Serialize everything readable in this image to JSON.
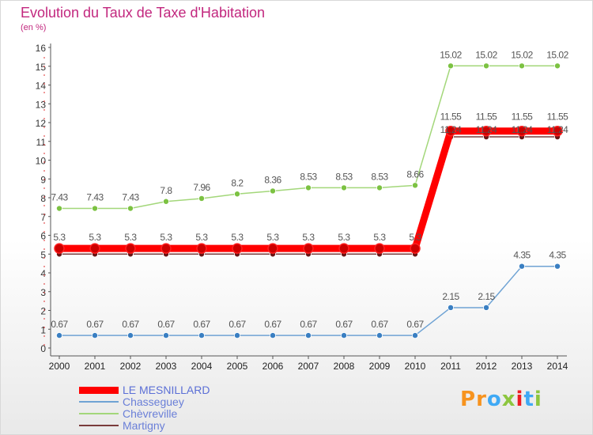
{
  "header": {
    "title": "Evolution du Taux de Taxe d'Habitation",
    "unit": "(en %)"
  },
  "logo": {
    "text": "Proxiti",
    "colors": [
      "#f7931e",
      "#f7931e",
      "#3fa9f5",
      "#8dc63f",
      "#ed1c24",
      "#3fa9f5",
      "#8dc63f"
    ]
  },
  "chart_data": {
    "type": "line",
    "x": [
      "2000",
      "2001",
      "2002",
      "2003",
      "2004",
      "2005",
      "2006",
      "2007",
      "2008",
      "2009",
      "2010",
      "2011",
      "2012",
      "2013",
      "2014"
    ],
    "ylim": [
      0,
      16
    ],
    "yticks": [
      0,
      1,
      2,
      3,
      4,
      5,
      6,
      7,
      8,
      9,
      10,
      11,
      12,
      13,
      14,
      15,
      16
    ],
    "grid": false,
    "legend_position": "bottom-left",
    "series": [
      {
        "name": "LE MESNILLARD",
        "color": "#ff0000",
        "marker_color": "#cc0000",
        "values": [
          5.3,
          5.3,
          5.3,
          5.3,
          5.3,
          5.3,
          5.3,
          5.3,
          5.3,
          5.3,
          5.3,
          11.55,
          11.55,
          11.55,
          11.55
        ],
        "labels": [
          "5.3",
          "5.3",
          "5.3",
          "5.3",
          "5.3",
          "5.3",
          "5.3",
          "5.3",
          "5.3",
          "5.3",
          "5.3",
          "11.55",
          "11.55",
          "11.55",
          "11.55"
        ]
      },
      {
        "name": "Chasseguey",
        "color": "#6fa3d4",
        "marker_color": "#3a7fc2",
        "values": [
          0.67,
          0.67,
          0.67,
          0.67,
          0.67,
          0.67,
          0.67,
          0.67,
          0.67,
          0.67,
          0.67,
          2.15,
          2.15,
          4.35,
          4.35
        ],
        "labels": [
          "0.67",
          "0.67",
          "0.67",
          "0.67",
          "0.67",
          "0.67",
          "0.67",
          "0.67",
          "0.67",
          "0.67",
          "0.67",
          "2.15",
          "2.15",
          "4.35",
          "4.35"
        ]
      },
      {
        "name": "Chèvreville",
        "color": "#a3d77a",
        "marker_color": "#7cc242",
        "values": [
          7.43,
          7.43,
          7.43,
          7.8,
          7.96,
          8.2,
          8.36,
          8.53,
          8.53,
          8.53,
          8.66,
          15.02,
          15.02,
          15.02,
          15.02
        ],
        "labels": [
          "7.43",
          "7.43",
          "7.43",
          "7.8",
          "7.96",
          "8.2",
          "8.36",
          "8.53",
          "8.53",
          "8.53",
          "8.66",
          "15.02",
          "15.02",
          "15.02",
          "15.02"
        ]
      },
      {
        "name": "Martigny",
        "color": "#7a3b3b",
        "marker_color": "#6b1414",
        "values": [
          5.0,
          5.0,
          5.0,
          5.0,
          5.0,
          5.0,
          5.0,
          5.0,
          5.0,
          5.0,
          5.0,
          11.24,
          11.24,
          11.24,
          11.24
        ],
        "labels": [
          "5",
          "5",
          "5",
          "5",
          "5",
          "5",
          "5",
          "5",
          "5",
          "5",
          "5",
          "11.24",
          "11.24",
          "11.24",
          "11.24"
        ]
      }
    ]
  }
}
